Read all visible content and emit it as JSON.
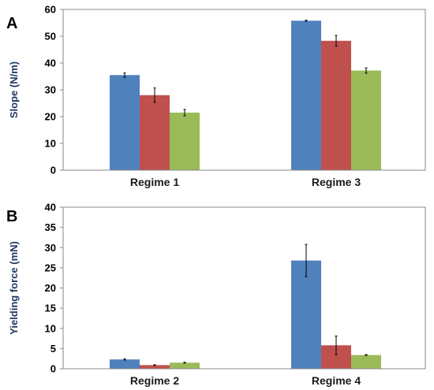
{
  "chart_data": [
    {
      "panel": "A",
      "type": "bar",
      "ylabel": "Slope (N/m)",
      "xlabel": "",
      "ylim": [
        0,
        60
      ],
      "yticks": [
        0,
        10,
        20,
        30,
        40,
        50,
        60
      ],
      "grid": false,
      "legend": "none",
      "categories": [
        "Regime 1",
        "Regime 3"
      ],
      "series": [
        {
          "color": "#4f81bd",
          "values": [
            35.5,
            55.8
          ],
          "errors": [
            0.8,
            0.2
          ]
        },
        {
          "color": "#c0504d",
          "values": [
            28.0,
            48.3
          ],
          "errors": [
            2.7,
            2.0
          ]
        },
        {
          "color": "#9bbb59",
          "values": [
            21.5,
            37.2
          ],
          "errors": [
            1.2,
            1.0
          ]
        }
      ]
    },
    {
      "panel": "B",
      "type": "bar",
      "ylabel": "Yielding force (mN)",
      "xlabel": "",
      "ylim": [
        0,
        40
      ],
      "yticks": [
        0,
        5,
        10,
        15,
        20,
        25,
        30,
        35,
        40
      ],
      "grid": false,
      "legend": "none",
      "categories": [
        "Regime 2",
        "Regime 4"
      ],
      "series": [
        {
          "color": "#4f81bd",
          "values": [
            2.3,
            26.8
          ],
          "errors": [
            0.15,
            4.0
          ]
        },
        {
          "color": "#c0504d",
          "values": [
            0.9,
            5.8
          ],
          "errors": [
            0.1,
            2.3
          ]
        },
        {
          "color": "#9bbb59",
          "values": [
            1.5,
            3.4
          ],
          "errors": [
            0.1,
            0.1
          ]
        }
      ]
    }
  ]
}
